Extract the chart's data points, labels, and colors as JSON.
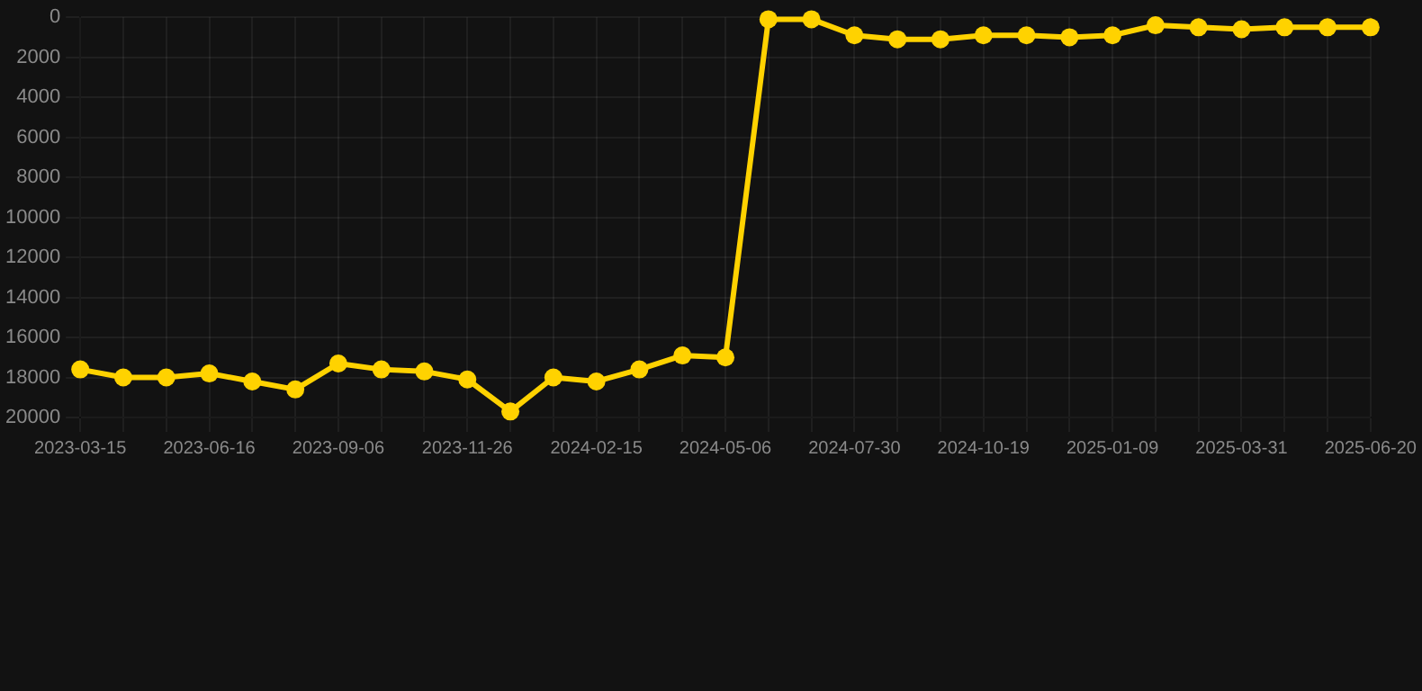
{
  "chart_data": {
    "type": "line",
    "categories": [
      "2023-03-15",
      null,
      null,
      "2023-06-16",
      null,
      null,
      "2023-09-06",
      null,
      null,
      "2023-11-26",
      null,
      null,
      "2024-02-15",
      null,
      null,
      "2024-05-06",
      null,
      null,
      "2024-07-30",
      null,
      null,
      "2024-10-19",
      null,
      null,
      "2025-01-09",
      null,
      null,
      "2025-03-31",
      null,
      null,
      "2025-06-20"
    ],
    "series": [
      {
        "color": "#ffd200",
        "values": [
          17600,
          18000,
          18000,
          17800,
          18200,
          18600,
          17300,
          17600,
          17700,
          18100,
          19700,
          18000,
          18200,
          17600,
          16900,
          17000,
          100,
          100,
          900,
          1100,
          1100,
          900,
          900,
          1000,
          900,
          400,
          500,
          600,
          500,
          500,
          500
        ]
      }
    ],
    "ylim": [
      20000,
      0
    ],
    "yticks": [
      0,
      2000,
      4000,
      6000,
      8000,
      10000,
      12000,
      14000,
      16000,
      18000,
      20000
    ],
    "grid": true,
    "marker": "circle",
    "line_style": "solid"
  }
}
